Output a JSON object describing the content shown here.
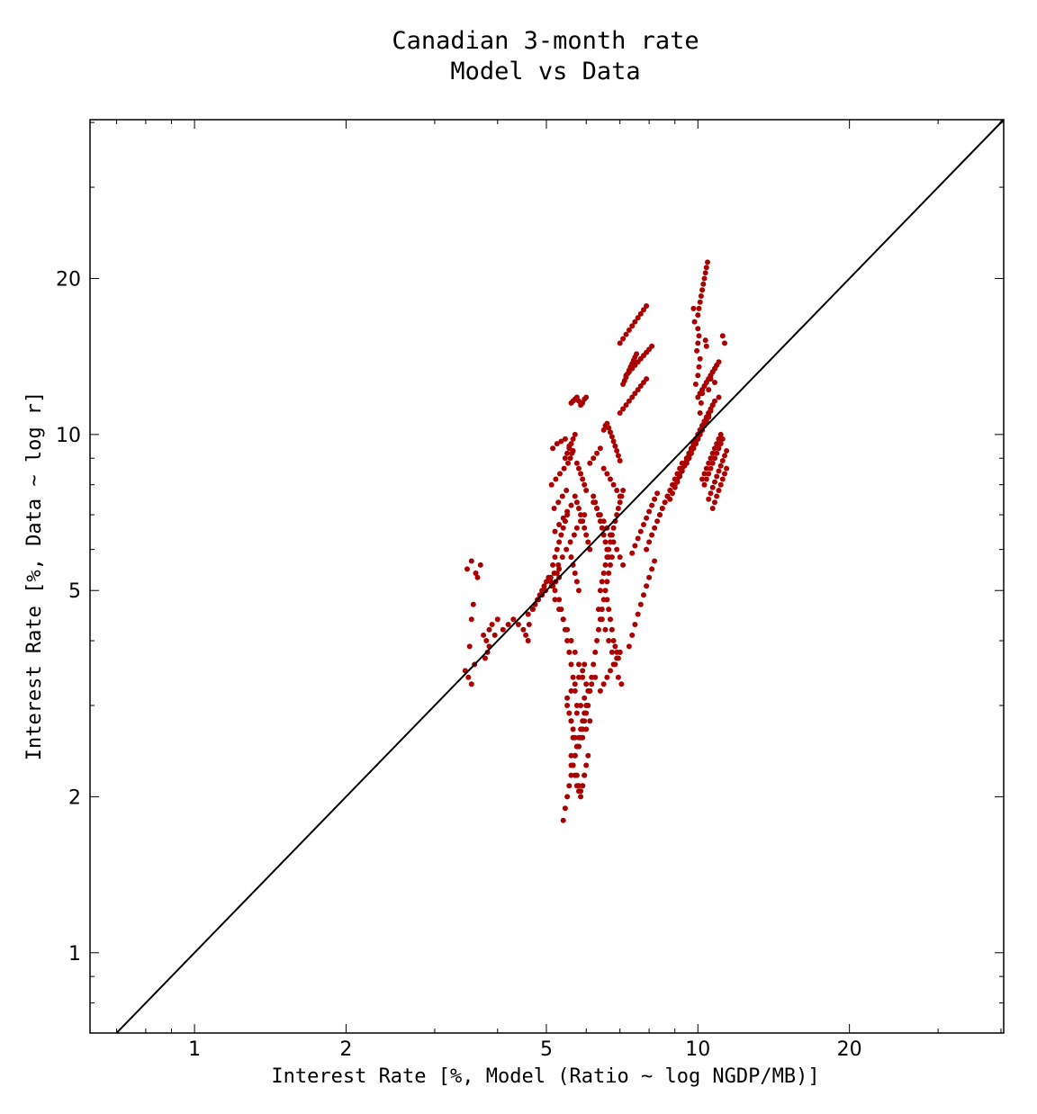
{
  "chart_data": {
    "type": "scatter",
    "title_line1": "Canadian 3-month rate",
    "title_line2": "Model vs Data",
    "xlabel": "Interest Rate [%, Model (Ratio ~ log NGDP/MB)]",
    "ylabel": "Interest Rate [%, Data ~ log r]",
    "x_scale": "log",
    "y_scale": "log",
    "xlim": [
      0.62,
      40.5
    ],
    "ylim": [
      0.7,
      40.5
    ],
    "x_ticks": [
      1,
      2,
      5,
      10,
      20
    ],
    "y_ticks": [
      1,
      2,
      5,
      10,
      20
    ],
    "x_tick_labels": [
      "1",
      "2",
      "5",
      "10",
      "20"
    ],
    "y_tick_labels": [
      "1",
      "2",
      "5",
      "10",
      "20"
    ],
    "grid": false,
    "reference_line": "y = x",
    "point_color": "#aa0000",
    "line_color": "#000000",
    "x": [
      3.45,
      3.5,
      3.55,
      3.48,
      3.6,
      3.55,
      3.52,
      3.58,
      3.65,
      3.7,
      3.62,
      3.55,
      3.75,
      3.8,
      3.85,
      3.9,
      4.0,
      3.95,
      3.82,
      3.78,
      3.85,
      4.1,
      4.2,
      4.3,
      4.4,
      4.5,
      4.55,
      4.6,
      4.62,
      4.7,
      4.8,
      4.9,
      5.0,
      5.1,
      5.15,
      5.2,
      4.85,
      4.95,
      5.05,
      5.25,
      5.3,
      4.6,
      4.7,
      4.75,
      4.82,
      4.9,
      4.98,
      5.12,
      5.22,
      5.3,
      5.15,
      5.2,
      5.25,
      5.3,
      5.35,
      5.4,
      5.45,
      5.5,
      5.18,
      5.28,
      5.38,
      5.48,
      5.12,
      5.22,
      5.32,
      5.42,
      5.52,
      5.58,
      5.62,
      5.15,
      5.25,
      5.35,
      5.45,
      5.55,
      5.65,
      5.2,
      5.3,
      5.4,
      5.5,
      5.6,
      5.1,
      5.18,
      5.28,
      5.38,
      5.48,
      5.58,
      5.68,
      5.75,
      5.85,
      5.95,
      5.2,
      5.3,
      5.4,
      5.5,
      5.6,
      5.7,
      5.8,
      5.9,
      6.0,
      6.1,
      5.5,
      5.55,
      5.6,
      5.65,
      5.7,
      5.75,
      5.6,
      5.65,
      5.7,
      5.75,
      5.8,
      5.85,
      5.9,
      5.95,
      5.6,
      5.7,
      5.8,
      5.9,
      6.0,
      6.1,
      5.75,
      5.85,
      5.95,
      6.05,
      6.15,
      6.25,
      5.6,
      5.65,
      5.7,
      5.75,
      5.8,
      5.85,
      5.9,
      5.95,
      6.0,
      5.4,
      5.45,
      5.5,
      5.55,
      5.6,
      5.65,
      5.7,
      5.75,
      5.8,
      5.85,
      5.9,
      5.95,
      6.0,
      5.5,
      5.6,
      5.7,
      5.8,
      5.9,
      5.95,
      5.45,
      5.5,
      5.55,
      5.6,
      5.65,
      5.7,
      5.75,
      5.8,
      5.85,
      5.9,
      5.95,
      6.0,
      5.7,
      5.75,
      5.8,
      5.85,
      5.9,
      5.95,
      6.0,
      6.05,
      6.1,
      5.6,
      5.65,
      5.7,
      5.75,
      5.8,
      5.3,
      5.35,
      5.4,
      5.45,
      5.5,
      5.55,
      5.6,
      5.65,
      5.7,
      5.75,
      5.6,
      5.65,
      5.7,
      5.75,
      5.8,
      5.85,
      5.9,
      5.95,
      6.0,
      6.05,
      5.8,
      5.85,
      5.9,
      5.95,
      6.0,
      6.05,
      6.1,
      6.15,
      6.2,
      6.25,
      6.3,
      6.35,
      6.4,
      6.45,
      6.5,
      6.55,
      6.6,
      6.65,
      6.7,
      6.75,
      6.1,
      6.2,
      6.3,
      6.4,
      6.5,
      6.6,
      6.7,
      6.8,
      6.9,
      7.0,
      6.2,
      6.3,
      6.4,
      6.5,
      6.6,
      6.7,
      6.8,
      6.9,
      7.0,
      7.1,
      6.35,
      6.45,
      6.55,
      6.65,
      6.75,
      6.85,
      6.95,
      7.05,
      6.4,
      6.5,
      6.6,
      6.7,
      6.8,
      6.9,
      7.0,
      6.5,
      6.55,
      6.6,
      6.65,
      6.7,
      6.75,
      6.8,
      6.85,
      6.9,
      6.95,
      7.0,
      6.2,
      6.25,
      6.3,
      6.35,
      6.4,
      6.45,
      6.5,
      6.55,
      6.6,
      6.65,
      6.6,
      6.65,
      6.7,
      6.75,
      6.8,
      6.85,
      6.9,
      6.95,
      7.0,
      6.4,
      6.45,
      6.5,
      6.55,
      6.6,
      6.65,
      6.7,
      6.75,
      6.8,
      6.85,
      6.9,
      6.95,
      7.0,
      7.05,
      7.1,
      7.0,
      7.1,
      7.2,
      7.3,
      7.4,
      7.5,
      7.6,
      7.7,
      7.8,
      7.9,
      7.2,
      7.3,
      7.4,
      7.5,
      7.6,
      7.7,
      7.8,
      7.9,
      8.0,
      8.1,
      7.3,
      7.4,
      7.5,
      7.6,
      7.7,
      7.8,
      7.9,
      8.0,
      8.1,
      8.2,
      7.4,
      7.5,
      7.6,
      7.7,
      7.8,
      7.9,
      8.0,
      8.1,
      8.2,
      8.3,
      7.1,
      7.15,
      7.2,
      7.25,
      7.3,
      7.35,
      7.4,
      7.45,
      7.5,
      7.55,
      7.0,
      7.1,
      7.2,
      7.3,
      7.4,
      7.5,
      7.6,
      7.7,
      7.8,
      7.9,
      7.9,
      8.0,
      8.1,
      8.2,
      8.3,
      8.4,
      8.5,
      8.6,
      8.7,
      8.8,
      8.4,
      8.5,
      8.6,
      8.7,
      8.8,
      8.9,
      9.0,
      9.1,
      9.2,
      9.3,
      8.8,
      8.9,
      9.0,
      9.1,
      9.2,
      9.3,
      9.4,
      9.5,
      9.6,
      9.7,
      9.0,
      9.1,
      9.2,
      9.3,
      9.4,
      9.5,
      9.6,
      9.7,
      9.8,
      9.9,
      9.3,
      9.4,
      9.5,
      9.6,
      9.7,
      9.8,
      9.9,
      10.0,
      10.1,
      10.2,
      9.5,
      9.6,
      9.7,
      9.8,
      9.9,
      10.0,
      10.1,
      10.2,
      10.3,
      10.4,
      9.6,
      9.7,
      9.8,
      9.9,
      10.0,
      10.1,
      10.2,
      10.3,
      10.4,
      10.5,
      9.7,
      9.8,
      9.9,
      10.0,
      10.1,
      10.2,
      10.3,
      10.4,
      10.5,
      10.6,
      9.8,
      9.9,
      10.0,
      10.1,
      10.2,
      10.3,
      10.4,
      10.5,
      10.6,
      10.7,
      9.9,
      10.0,
      10.1,
      10.2,
      10.3,
      10.4,
      10.5,
      10.6,
      10.7,
      10.8,
      10.0,
      10.05,
      10.1,
      10.15,
      10.2,
      10.25,
      10.3,
      10.35,
      10.4,
      10.45,
      10.0,
      10.1,
      10.2,
      10.3,
      10.4,
      10.5,
      10.6,
      10.7,
      10.8,
      10.9,
      10.1,
      10.2,
      10.3,
      10.4,
      10.5,
      10.6,
      10.7,
      10.8,
      10.9,
      11.0,
      10.2,
      10.3,
      10.4,
      10.5,
      10.6,
      10.7,
      10.8,
      10.9,
      11.0,
      11.1,
      10.3,
      10.4,
      10.5,
      10.6,
      10.7,
      10.8,
      10.9,
      11.0,
      11.1,
      11.2,
      10.5,
      10.6,
      10.7,
      10.8,
      10.9,
      11.0,
      11.1,
      11.2,
      11.3,
      11.4,
      10.7,
      10.8,
      10.9,
      11.0,
      11.1,
      11.2,
      11.3,
      11.4,
      10.0,
      10.05,
      10.0,
      9.95,
      10.1,
      10.05,
      10.0,
      9.9,
      10.2,
      10.15,
      10.1,
      10.3,
      9.8,
      9.85,
      10.4,
      10.35,
      10.6,
      10.5,
      11.3,
      11.2,
      11.0,
      10.8
    ],
    "y": [
      3.5,
      3.4,
      3.3,
      5.5,
      3.6,
      4.4,
      3.9,
      4.7,
      5.3,
      5.6,
      5.4,
      5.7,
      4.1,
      4.0,
      4.2,
      4.3,
      4.4,
      4.1,
      3.8,
      3.7,
      3.9,
      4.2,
      4.3,
      4.4,
      4.3,
      4.2,
      4.1,
      4.0,
      4.3,
      4.6,
      4.8,
      5.0,
      5.2,
      5.3,
      5.1,
      5.0,
      4.9,
      5.1,
      5.3,
      5.4,
      5.5,
      4.5,
      4.6,
      4.7,
      4.8,
      4.9,
      5.0,
      5.1,
      5.2,
      5.3,
      5.6,
      5.8,
      6.0,
      6.2,
      6.4,
      6.6,
      6.8,
      7.0,
      7.2,
      7.4,
      7.6,
      7.8,
      8.0,
      8.2,
      8.4,
      8.6,
      8.8,
      9.0,
      9.2,
      9.4,
      9.6,
      9.7,
      9.8,
      9.5,
      9.3,
      6.5,
      6.7,
      6.9,
      7.1,
      7.3,
      5.2,
      5.4,
      5.6,
      5.8,
      6.0,
      6.2,
      6.4,
      6.6,
      6.8,
      7.0,
      4.8,
      4.6,
      4.4,
      4.2,
      4.0,
      3.8,
      3.6,
      3.4,
      3.3,
      3.2,
      3.0,
      2.9,
      2.8,
      2.7,
      2.6,
      2.5,
      2.4,
      2.3,
      2.2,
      2.1,
      2.05,
      2.0,
      2.1,
      2.2,
      2.3,
      2.4,
      2.5,
      2.6,
      2.7,
      2.8,
      2.9,
      3.0,
      3.1,
      3.2,
      3.3,
      3.4,
      11.5,
      11.6,
      11.7,
      11.8,
      11.6,
      11.4,
      11.5,
      11.7,
      11.8,
      1.8,
      1.9,
      2.0,
      2.1,
      2.2,
      2.3,
      2.4,
      2.5,
      2.6,
      2.7,
      2.8,
      2.9,
      3.0,
      3.1,
      3.2,
      3.3,
      3.4,
      3.5,
      3.6,
      9.0,
      9.2,
      9.4,
      9.6,
      9.8,
      10.0,
      8.8,
      8.6,
      8.4,
      8.2,
      8.0,
      7.8,
      7.6,
      7.4,
      7.2,
      7.0,
      6.8,
      6.6,
      6.4,
      6.2,
      6.0,
      5.8,
      5.6,
      5.4,
      5.2,
      5.0,
      4.8,
      4.6,
      4.4,
      4.2,
      4.0,
      3.8,
      3.6,
      3.4,
      3.2,
      3.0,
      2.8,
      2.6,
      2.4,
      2.2,
      2.1,
      2.05,
      2.1,
      2.2,
      2.3,
      2.4,
      2.5,
      2.6,
      2.7,
      2.8,
      2.9,
      3.0,
      3.2,
      3.4,
      3.6,
      3.8,
      4.0,
      4.2,
      4.4,
      4.6,
      4.8,
      5.0,
      5.2,
      5.4,
      5.6,
      5.8,
      8.8,
      9.0,
      9.2,
      9.4,
      8.6,
      8.4,
      8.2,
      8.0,
      7.8,
      7.6,
      7.4,
      7.2,
      7.0,
      6.8,
      6.6,
      6.4,
      6.2,
      6.0,
      5.8,
      5.6,
      4.6,
      4.4,
      4.2,
      4.0,
      3.8,
      3.6,
      3.4,
      3.3,
      3.2,
      3.3,
      3.4,
      3.5,
      3.6,
      3.7,
      3.8,
      10.2,
      10.4,
      10.5,
      10.3,
      10.1,
      9.9,
      9.7,
      9.5,
      9.3,
      9.1,
      8.9,
      7.6,
      7.4,
      7.2,
      7.0,
      6.8,
      6.6,
      6.4,
      6.2,
      6.0,
      5.8,
      4.8,
      4.6,
      4.4,
      4.2,
      4.0,
      3.9,
      3.8,
      3.7,
      3.8,
      5.0,
      5.2,
      5.4,
      5.6,
      5.8,
      6.0,
      6.2,
      6.4,
      6.6,
      6.8,
      7.0,
      7.2,
      7.4,
      7.6,
      7.8,
      11.0,
      11.2,
      11.4,
      11.6,
      11.8,
      12.0,
      12.2,
      12.4,
      12.6,
      12.8,
      13.0,
      13.2,
      13.4,
      13.6,
      13.8,
      14.0,
      14.2,
      14.4,
      14.6,
      14.8,
      3.9,
      4.1,
      4.3,
      4.5,
      4.7,
      4.9,
      5.1,
      5.3,
      5.5,
      5.7,
      5.9,
      6.1,
      6.3,
      6.5,
      6.7,
      6.9,
      7.1,
      7.3,
      7.5,
      7.7,
      12.5,
      12.7,
      12.9,
      13.1,
      13.3,
      13.5,
      13.7,
      13.9,
      14.1,
      14.3,
      15.0,
      15.3,
      15.6,
      15.9,
      16.2,
      16.5,
      16.8,
      17.1,
      17.4,
      17.7,
      6.0,
      6.2,
      6.4,
      6.6,
      6.8,
      7.0,
      7.2,
      7.4,
      7.6,
      7.8,
      7.0,
      7.2,
      7.4,
      7.6,
      7.8,
      8.0,
      8.2,
      8.4,
      8.6,
      8.8,
      7.5,
      7.7,
      7.9,
      8.1,
      8.3,
      8.5,
      8.7,
      8.9,
      9.1,
      9.3,
      8.0,
      8.2,
      8.4,
      8.6,
      8.8,
      9.0,
      9.2,
      9.4,
      9.6,
      9.8,
      8.5,
      8.7,
      8.9,
      9.1,
      9.3,
      9.5,
      9.7,
      9.9,
      10.1,
      10.3,
      8.8,
      9.0,
      9.2,
      9.4,
      9.6,
      9.8,
      10.0,
      10.2,
      10.4,
      10.6,
      9.0,
      9.2,
      9.4,
      9.6,
      9.8,
      10.0,
      10.2,
      10.4,
      10.6,
      10.8,
      9.3,
      9.5,
      9.7,
      9.9,
      10.1,
      10.3,
      10.5,
      10.7,
      10.9,
      11.1,
      9.6,
      9.8,
      10.0,
      10.2,
      10.4,
      10.6,
      10.8,
      11.0,
      11.2,
      11.4,
      9.8,
      10.0,
      10.2,
      10.4,
      10.6,
      10.8,
      11.0,
      11.2,
      11.4,
      11.6,
      17.0,
      17.5,
      18.0,
      18.5,
      19.0,
      19.5,
      20.0,
      20.5,
      21.0,
      21.5,
      11.8,
      12.0,
      12.2,
      12.4,
      12.6,
      12.8,
      13.0,
      13.2,
      13.4,
      13.6,
      12.0,
      12.2,
      12.4,
      12.6,
      12.8,
      13.0,
      13.2,
      13.4,
      13.6,
      13.8,
      8.2,
      8.4,
      8.6,
      8.8,
      9.0,
      9.2,
      9.4,
      9.6,
      9.8,
      10.0,
      8.0,
      8.2,
      8.4,
      8.6,
      8.8,
      9.0,
      9.2,
      9.4,
      9.6,
      9.8,
      7.5,
      7.7,
      7.9,
      8.1,
      8.3,
      8.5,
      8.7,
      8.9,
      9.1,
      9.3,
      7.2,
      7.4,
      7.6,
      7.8,
      8.0,
      8.2,
      8.4,
      8.6,
      16.0,
      15.5,
      15.0,
      14.5,
      14.0,
      13.5,
      13.0,
      12.5,
      12.0,
      11.5,
      11.0,
      10.5,
      17.5,
      16.5,
      14.8,
      15.2,
      12.8,
      12.2,
      15.0,
      15.5,
      11.8,
      12.6
    ]
  }
}
